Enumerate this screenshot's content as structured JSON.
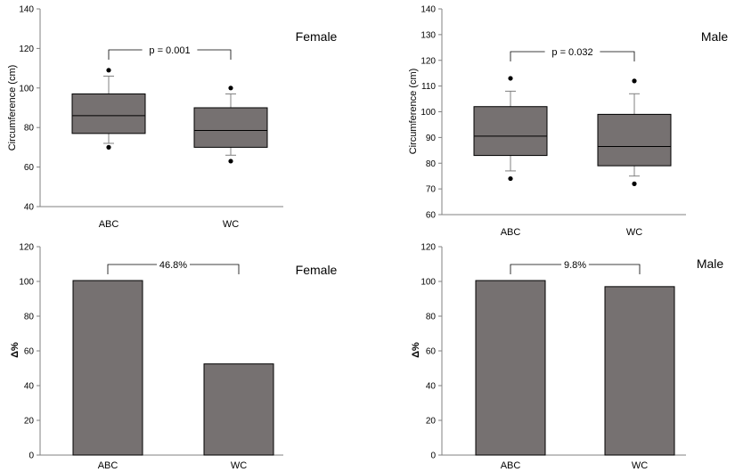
{
  "chart_data": [
    {
      "type": "box",
      "title": "Female",
      "ylabel": "Circumference (cm)",
      "ylim": [
        40,
        140
      ],
      "yticks": [
        40,
        60,
        80,
        100,
        120,
        140
      ],
      "categories": [
        "ABC",
        "WC"
      ],
      "boxes": [
        {
          "min": 72,
          "q1": 77,
          "median": 86,
          "q3": 97,
          "max": 106,
          "outliers": [
            70,
            109
          ]
        },
        {
          "min": 66,
          "q1": 70,
          "median": 78.5,
          "q3": 90,
          "max": 97,
          "outliers": [
            63,
            100
          ]
        }
      ],
      "annotation": "p = 0.001"
    },
    {
      "type": "box",
      "title": "Male",
      "ylabel": "Circumference (cm)",
      "ylim": [
        60,
        140
      ],
      "yticks": [
        60,
        70,
        80,
        90,
        100,
        110,
        120,
        130,
        140
      ],
      "categories": [
        "ABC",
        "WC"
      ],
      "boxes": [
        {
          "min": 77,
          "q1": 83,
          "median": 90.5,
          "q3": 102,
          "max": 108,
          "outliers": [
            74,
            113
          ]
        },
        {
          "min": 75,
          "q1": 79,
          "median": 86.5,
          "q3": 99,
          "max": 107,
          "outliers": [
            72,
            112
          ]
        }
      ],
      "annotation": "p = 0.032"
    },
    {
      "type": "bar",
      "title": "Female",
      "ylabel": "Δ%",
      "ylim": [
        0,
        120
      ],
      "yticks": [
        0,
        20,
        40,
        60,
        80,
        100,
        120
      ],
      "categories": [
        "ABC",
        "WC"
      ],
      "values": [
        100.5,
        52.5
      ],
      "annotation": "46.8%"
    },
    {
      "type": "bar",
      "title": "Male",
      "ylabel": "Δ%",
      "ylim": [
        0,
        120
      ],
      "yticks": [
        0,
        20,
        40,
        60,
        80,
        100,
        120
      ],
      "categories": [
        "ABC",
        "WC"
      ],
      "values": [
        100.5,
        97
      ],
      "annotation": "9.8%"
    }
  ],
  "colors": {
    "fill": "#767171",
    "stroke": "#000000",
    "axis": "#808080"
  }
}
